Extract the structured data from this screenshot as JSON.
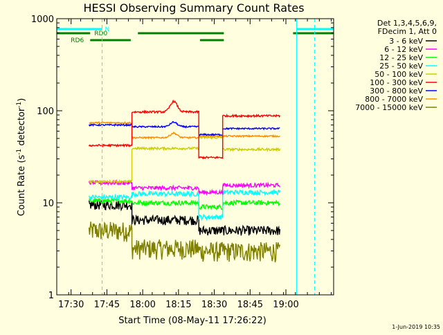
{
  "chart_data": {
    "type": "line",
    "title": "HESSI Observing Summary Count Rates",
    "xlabel": "Start Time (08-May-11 17:26:22)",
    "ylabel_parts": [
      "Count Rate (s",
      "-1",
      " detector",
      "-1",
      ")"
    ],
    "yscale": "log",
    "ylim": [
      1,
      1000
    ],
    "xlim_min": [
      -6,
      110
    ],
    "x_tick_labels": [
      "17:30",
      "17:45",
      "18:00",
      "18:15",
      "18:30",
      "18:45",
      "19:00"
    ],
    "x_tick_values_min": [
      0,
      15,
      30,
      45,
      60,
      75,
      90
    ],
    "y_tick_labels": [
      "1",
      "10",
      "100",
      "1000"
    ],
    "y_tick_values": [
      1,
      10,
      100,
      1000
    ],
    "legend_header": [
      "Det 1,3,4,5,6,9,",
      "FDecim 1, Att 0"
    ],
    "legend_position": "right",
    "timestamp": "1-Jun-2019 10:35",
    "flags": [
      {
        "name": "N",
        "color": "#00ffff",
        "segments": [
          [
            -6,
            13
          ],
          [
            94.5,
            110
          ]
        ],
        "level": "top"
      },
      {
        "name": "RD0",
        "color": "#008000",
        "segments": [
          [
            -6,
            8
          ],
          [
            28,
            64
          ],
          [
            93,
            110
          ]
        ],
        "level": "middle"
      },
      {
        "name": "RD6",
        "color": "#008000",
        "segments": [
          [
            8,
            25
          ],
          [
            54,
            64
          ]
        ],
        "level": "bottom"
      }
    ],
    "vlines": [
      {
        "x": 13,
        "style": "dashed",
        "color": "#00ffff"
      },
      {
        "x": 94.5,
        "style": "solid",
        "color": "#00ffff"
      },
      {
        "x": 102,
        "style": "dashed",
        "color": "#00ffff"
      }
    ],
    "segments": [
      {
        "start": 7.5,
        "end": 25.5
      },
      {
        "start": 25.5,
        "end": 53.5
      },
      {
        "start": 53.5,
        "end": 63.5
      },
      {
        "start": 63.5,
        "end": 87.5
      }
    ],
    "series": [
      {
        "name": "3 - 6 keV",
        "color": "#000000",
        "levels": [
          9.5,
          6.5,
          5,
          5
        ],
        "noise": 0.12
      },
      {
        "name": "6 - 12 keV",
        "color": "#ff00ff",
        "levels": [
          16.5,
          14.5,
          13,
          15.5
        ],
        "noise": 0.05
      },
      {
        "name": "12 - 25 keV",
        "color": "#00ff00",
        "levels": [
          10.5,
          10,
          9,
          10
        ],
        "noise": 0.06
      },
      {
        "name": "25 - 50 keV",
        "color": "#00ffff",
        "levels": [
          11.5,
          12.5,
          7,
          13
        ],
        "noise": 0.06
      },
      {
        "name": "50 - 100 keV",
        "color": "#cccc00",
        "levels": [
          17,
          39,
          51,
          38
        ],
        "noise": 0.03
      },
      {
        "name": "100 - 300 keV",
        "color": "#ff0000",
        "levels": [
          42,
          97,
          31,
          88
        ],
        "noise": 0.025
      },
      {
        "name": "300 - 800 keV",
        "color": "#0000ff",
        "levels": [
          70,
          67,
          55,
          64
        ],
        "noise": 0.02
      },
      {
        "name": "800 - 7000 keV",
        "color": "#ff8c00",
        "levels": [
          74,
          51,
          53,
          53
        ],
        "noise": 0.02
      },
      {
        "name": "7000 - 15000 keV",
        "color": "#808000",
        "levels": [
          5,
          3.2,
          3,
          3
        ],
        "noise": 0.25
      }
    ]
  }
}
